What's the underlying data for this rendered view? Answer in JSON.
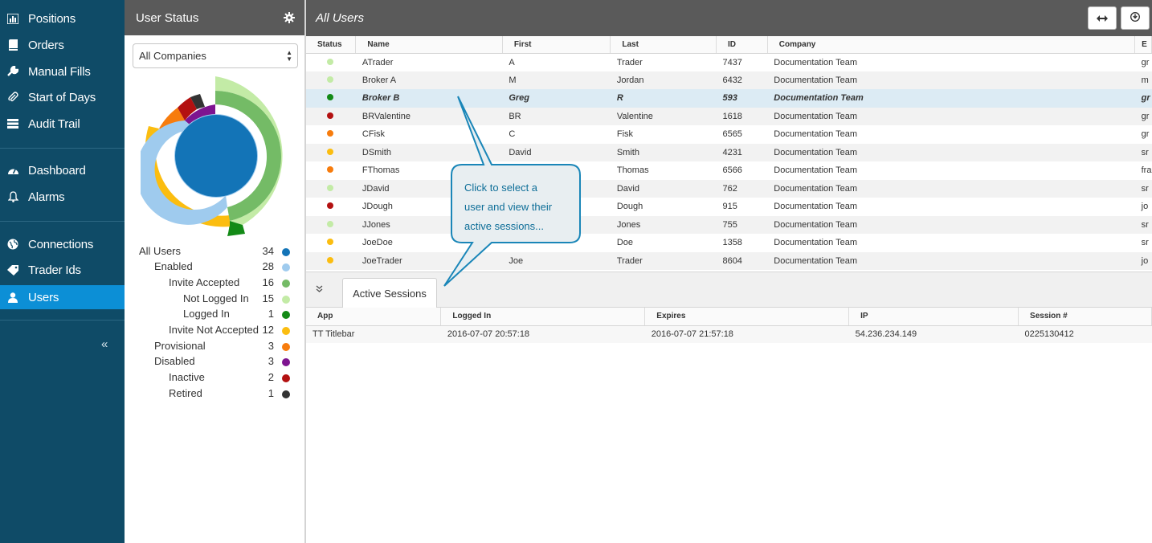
{
  "nav": {
    "items": [
      {
        "label": "Positions",
        "icon": "bar-chart-icon"
      },
      {
        "label": "Orders",
        "icon": "book-icon"
      },
      {
        "label": "Manual Fills",
        "icon": "wrench-icon"
      },
      {
        "label": "Start of Days",
        "icon": "paperclip-icon"
      },
      {
        "label": "Audit Trail",
        "icon": "list-icon"
      },
      {
        "label": "Dashboard",
        "icon": "dashboard-icon"
      },
      {
        "label": "Alarms",
        "icon": "bell-icon"
      },
      {
        "label": "Connections",
        "icon": "globe-icon"
      },
      {
        "label": "Trader Ids",
        "icon": "tag-icon"
      },
      {
        "label": "Users",
        "icon": "user-icon"
      }
    ],
    "active": "Users",
    "collapse_label": "«"
  },
  "status_panel": {
    "title": "User Status",
    "company_filter": "All Companies",
    "legend": [
      {
        "label": "All Users",
        "count": "34",
        "color": "#1374b7"
      },
      {
        "label": "Enabled",
        "count": "28",
        "color": "#9fcbee"
      },
      {
        "label": "Invite Accepted",
        "count": "16",
        "color": "#74bb66"
      },
      {
        "label": "Not Logged In",
        "count": "15",
        "color": "#c3eba6"
      },
      {
        "label": "Logged In",
        "count": "1",
        "color": "#138a16"
      },
      {
        "label": "Invite Not Accepted",
        "count": "12",
        "color": "#fbbd10"
      },
      {
        "label": "Provisional",
        "count": "3",
        "color": "#f77c0d"
      },
      {
        "label": "Disabled",
        "count": "3",
        "color": "#7e1490"
      },
      {
        "label": "Inactive",
        "count": "2",
        "color": "#b31111"
      },
      {
        "label": "Retired",
        "count": "1",
        "color": "#333333"
      }
    ]
  },
  "main": {
    "title": "All Users",
    "columns": [
      "Status",
      "Name",
      "First",
      "Last",
      "ID",
      "Company",
      "E"
    ],
    "users": [
      {
        "status_color": "#c3eba6",
        "name": "ATrader",
        "first": "A",
        "last": "Trader",
        "id": "7437",
        "company": "Documentation Team",
        "email": "gr"
      },
      {
        "status_color": "#c3eba6",
        "name": "Broker A",
        "first": "M",
        "last": "Jordan",
        "id": "6432",
        "company": "Documentation Team",
        "email": "m"
      },
      {
        "status_color": "#138a16",
        "name": "Broker B",
        "first": "Greg",
        "last": "R",
        "id": "593",
        "company": "Documentation Team",
        "email": "gr"
      },
      {
        "status_color": "#b31111",
        "name": "BRValentine",
        "first": "BR",
        "last": "Valentine",
        "id": "1618",
        "company": "Documentation Team",
        "email": "gr"
      },
      {
        "status_color": "#f77c0d",
        "name": "CFisk",
        "first": "C",
        "last": "Fisk",
        "id": "6565",
        "company": "Documentation Team",
        "email": "gr"
      },
      {
        "status_color": "#fbbd10",
        "name": "DSmith",
        "first": "David",
        "last": "Smith",
        "id": "4231",
        "company": "Documentation Team",
        "email": "sr"
      },
      {
        "status_color": "#f77c0d",
        "name": "FThomas",
        "first": "",
        "last": "Thomas",
        "id": "6566",
        "company": "Documentation Team",
        "email": "fra"
      },
      {
        "status_color": "#c3eba6",
        "name": "JDavid",
        "first": "",
        "last": "David",
        "id": "762",
        "company": "Documentation Team",
        "email": "sr"
      },
      {
        "status_color": "#b31111",
        "name": "JDough",
        "first": "",
        "last": "Dough",
        "id": "915",
        "company": "Documentation Team",
        "email": "jo"
      },
      {
        "status_color": "#c3eba6",
        "name": "JJones",
        "first": "",
        "last": "Jones",
        "id": "755",
        "company": "Documentation Team",
        "email": "sr"
      },
      {
        "status_color": "#fbbd10",
        "name": "JoeDoe",
        "first": "",
        "last": "Doe",
        "id": "1358",
        "company": "Documentation Team",
        "email": "sr"
      },
      {
        "status_color": "#fbbd10",
        "name": "JoeTrader",
        "first": "Joe",
        "last": "Trader",
        "id": "8604",
        "company": "Documentation Team",
        "email": "jo"
      }
    ],
    "selected_index": 2
  },
  "sessions": {
    "tab_label": "Active Sessions",
    "columns": [
      "App",
      "Logged In",
      "Expires",
      "IP",
      "Session #"
    ],
    "rows": [
      {
        "app": "TT Titlebar",
        "logged_in": "2016-07-07 20:57:18",
        "expires": "2016-07-07 21:57:18",
        "ip": "54.236.234.149",
        "session": "0225130412"
      }
    ]
  },
  "callout": {
    "line1": "Click to select a",
    "line2": "user and view their",
    "line3": "active sessions..."
  }
}
